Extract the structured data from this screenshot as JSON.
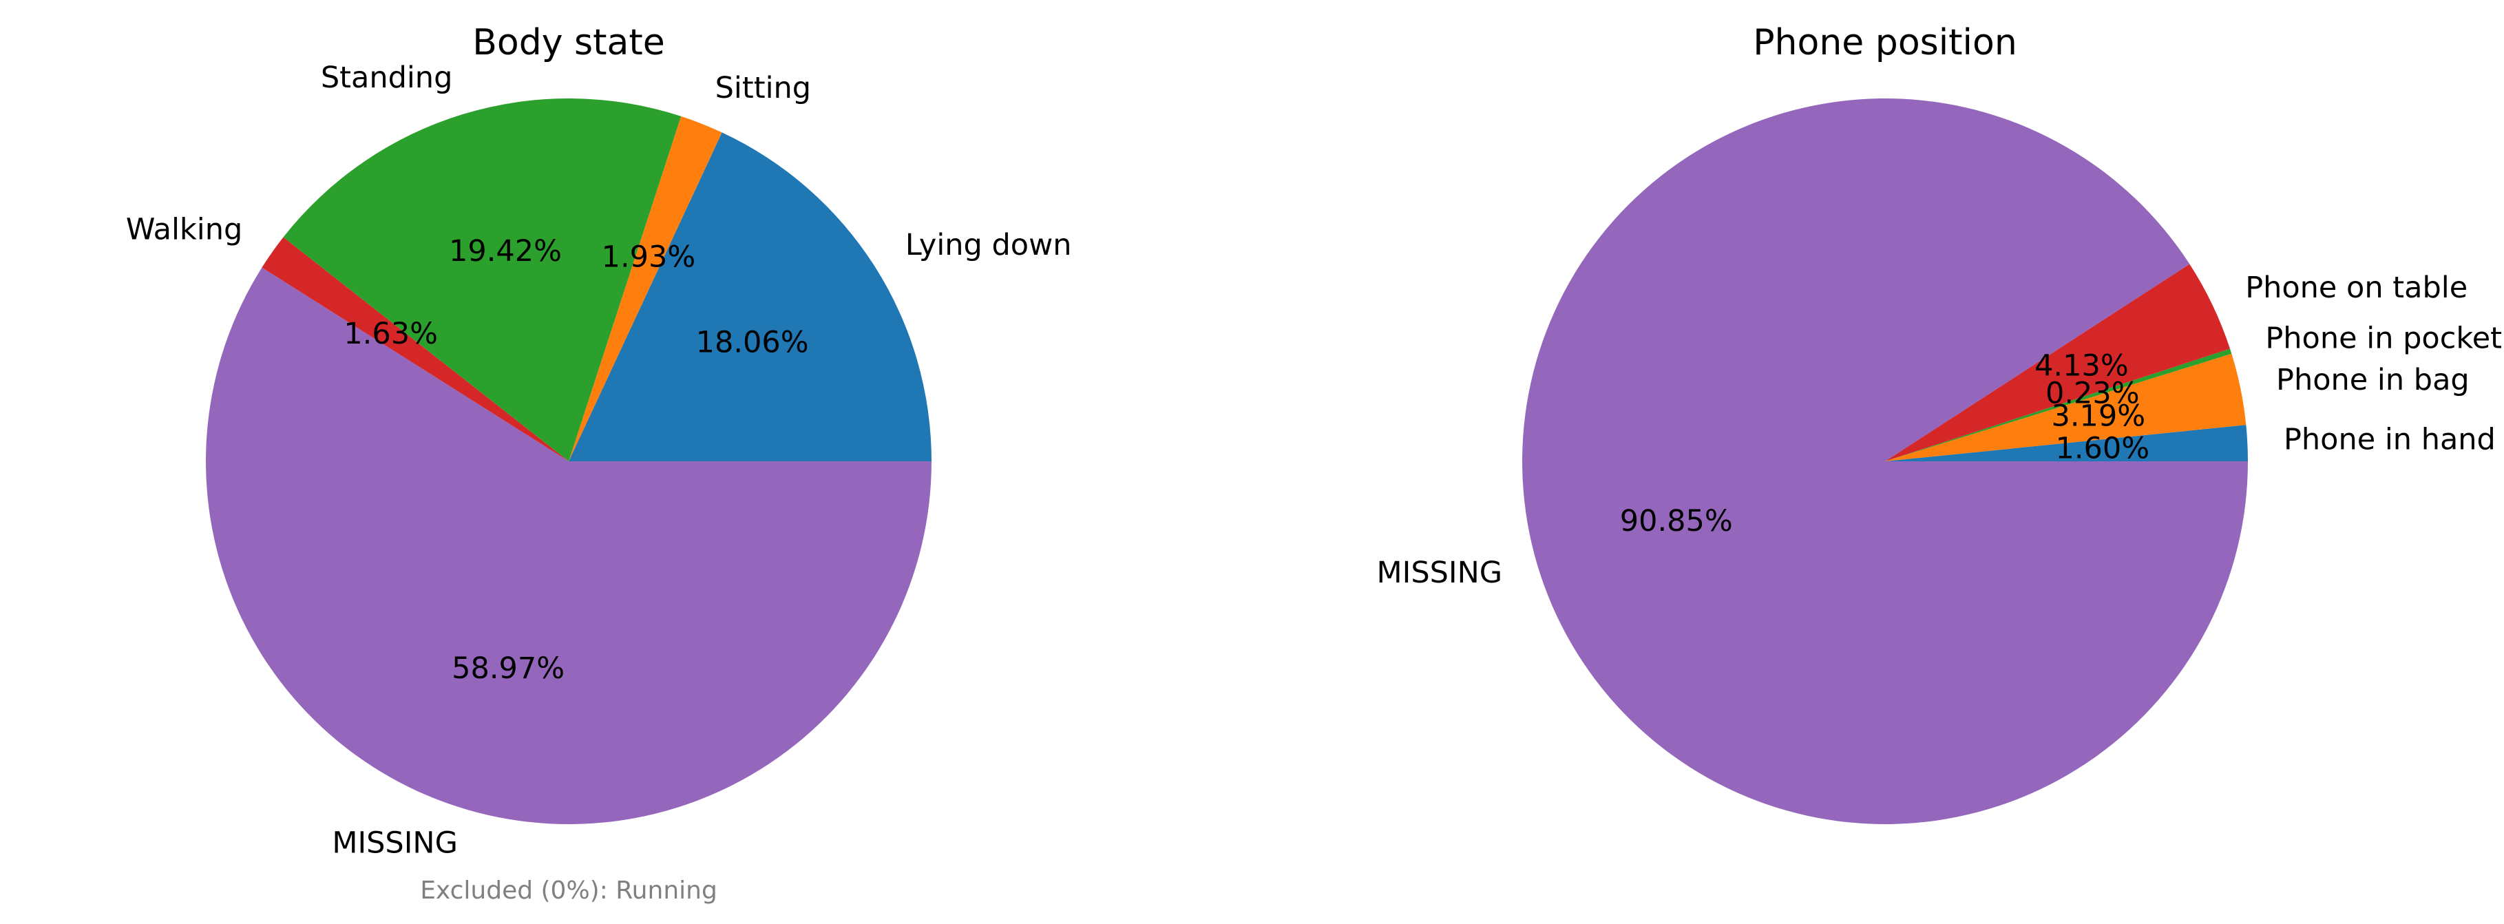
{
  "chart_data": [
    {
      "type": "pie",
      "title": "Body state",
      "slices": [
        {
          "label": "Lying down",
          "value": 18.06,
          "pct_label": "18.06%",
          "color": "#1f77b4"
        },
        {
          "label": "Sitting",
          "value": 1.93,
          "pct_label": "1.93%",
          "color": "#ff7f0e"
        },
        {
          "label": "Standing",
          "value": 19.42,
          "pct_label": "19.42%",
          "color": "#2ca02c"
        },
        {
          "label": "Walking",
          "value": 1.63,
          "pct_label": "1.63%",
          "color": "#d62728"
        },
        {
          "label": "MISSING",
          "value": 58.97,
          "pct_label": "58.97%",
          "color": "#9467bd"
        }
      ],
      "note": "Excluded (0%): Running"
    },
    {
      "type": "pie",
      "title": "Phone position",
      "slices": [
        {
          "label": "Phone in hand",
          "value": 1.6,
          "pct_label": "1.60%",
          "color": "#1f77b4"
        },
        {
          "label": "Phone in bag",
          "value": 3.19,
          "pct_label": "3.19%",
          "color": "#ff7f0e"
        },
        {
          "label": "Phone in pocket",
          "value": 0.23,
          "pct_label": "0.23%",
          "color": "#2ca02c"
        },
        {
          "label": "Phone on table",
          "value": 4.13,
          "pct_label": "4.13%",
          "color": "#d62728"
        },
        {
          "label": "MISSING",
          "value": 90.85,
          "pct_label": "90.85%",
          "color": "#9467bd"
        }
      ],
      "note": ""
    }
  ]
}
